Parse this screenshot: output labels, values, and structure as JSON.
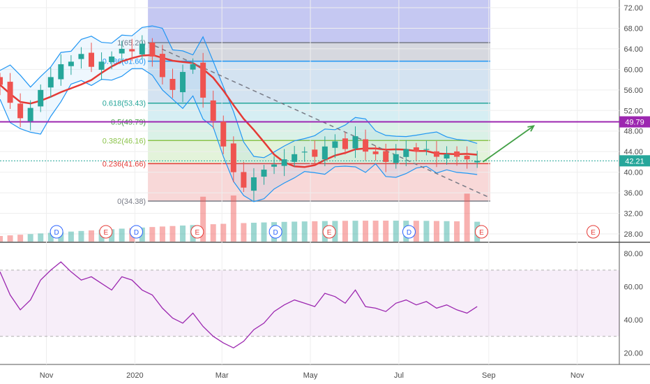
{
  "chart_data": {
    "type": "candlestick",
    "price_axis": {
      "ticks": [
        "72.00",
        "68.00",
        "64.00",
        "60.00",
        "56.00",
        "52.00",
        "48.00",
        "44.00",
        "40.00",
        "36.00",
        "32.00",
        "28.00"
      ],
      "ylim": [
        26.5,
        73.5
      ]
    },
    "rsi_axis": {
      "ticks": [
        "80.00",
        "60.00",
        "40.00",
        "20.00"
      ],
      "ylim": [
        13,
        86
      ],
      "band": [
        30,
        70
      ]
    },
    "x_axis": {
      "labels": [
        {
          "label": "Nov",
          "month": "2019-11"
        },
        {
          "label": "2020",
          "month": "2020-01"
        },
        {
          "label": "Mar",
          "month": "2020-03"
        },
        {
          "label": "May",
          "month": "2020-05"
        },
        {
          "label": "Jul",
          "month": "2020-07"
        },
        {
          "label": "Sep",
          "month": "2020-09"
        },
        {
          "label": "Nov",
          "month": "2020-11"
        }
      ]
    },
    "price_badges": [
      {
        "label": "49.79",
        "value": 49.79,
        "color": "#9c27b0"
      },
      {
        "label": "42.21",
        "value": 42.21,
        "color": "#26a69a"
      }
    ],
    "fibonacci": {
      "high": 65.2,
      "low": 34.38,
      "levels": [
        {
          "label": "1(65.20)",
          "value": 65.2,
          "color": "#787b86",
          "fill": "#d1d4dc"
        },
        {
          "label": "0.786(61.60)",
          "value": 61.6,
          "color": "#2196f3",
          "fill": "#cfe0f0"
        },
        {
          "label": "0.618(53.43)",
          "value": 53.43,
          "color": "#26a69a",
          "fill": "#d2ecf2"
        },
        {
          "label": "0.5(49.79)",
          "value": 49.79,
          "color": "#43a047",
          "fill": "#d6f0e4"
        },
        {
          "label": "0.382(46.16)",
          "value": 46.16,
          "color": "#8bc34a",
          "fill": "#e0f2d6"
        },
        {
          "label": "0.236(41.66)",
          "value": 41.66,
          "color": "#e53935",
          "fill": "#f7d4d4"
        },
        {
          "label": "0(34.38)",
          "value": 34.38,
          "color": "#787b86",
          "fill": null
        }
      ]
    },
    "events": [
      {
        "label": "D",
        "date": "2019-11-08",
        "color": "#2962ff"
      },
      {
        "label": "E",
        "date": "2019-12-12",
        "color": "#e53935"
      },
      {
        "label": "D",
        "date": "2020-01-02",
        "color": "#2962ff"
      },
      {
        "label": "E",
        "date": "2020-02-13",
        "color": "#e53935"
      },
      {
        "label": "D",
        "date": "2020-04-07",
        "color": "#2962ff"
      },
      {
        "label": "E",
        "date": "2020-05-14",
        "color": "#e53935"
      },
      {
        "label": "D",
        "date": "2020-07-08",
        "color": "#2962ff"
      },
      {
        "label": "E",
        "date": "2020-08-27",
        "color": "#e53935"
      },
      {
        "label": "E",
        "date": "2020-11-12",
        "color": "#e53935"
      }
    ],
    "ohlc_weekly": {
      "dates": [
        "2019-09-30",
        "2019-10-07",
        "2019-10-14",
        "2019-10-21",
        "2019-10-28",
        "2019-11-04",
        "2019-11-11",
        "2019-11-18",
        "2019-11-25",
        "2019-12-02",
        "2019-12-09",
        "2019-12-16",
        "2019-12-23",
        "2019-12-30",
        "2020-01-06",
        "2020-01-13",
        "2020-01-20",
        "2020-01-27",
        "2020-02-03",
        "2020-02-10",
        "2020-02-17",
        "2020-02-24",
        "2020-03-02",
        "2020-03-09",
        "2020-03-16",
        "2020-03-23",
        "2020-03-30",
        "2020-04-06",
        "2020-04-13",
        "2020-04-20",
        "2020-04-27",
        "2020-05-04",
        "2020-05-11",
        "2020-05-18",
        "2020-05-25",
        "2020-06-01",
        "2020-06-08",
        "2020-06-15",
        "2020-06-22",
        "2020-06-29",
        "2020-07-06",
        "2020-07-13",
        "2020-07-20",
        "2020-07-27",
        "2020-08-03",
        "2020-08-10",
        "2020-08-17",
        "2020-08-24"
      ],
      "close": [
        57.0,
        53.5,
        50.5,
        52.5,
        56.0,
        58.5,
        61.0,
        61.5,
        63.0,
        60.5,
        61.5,
        62.5,
        64.0,
        63.5,
        65.0,
        62.5,
        58.5,
        56.0,
        59.5,
        61.0,
        54.5,
        50.0,
        45.0,
        40.0,
        37.0,
        39.0,
        40.5,
        41.5,
        42.5,
        43.5,
        44.0,
        43.0,
        45.0,
        46.0,
        44.5,
        47.0,
        44.0,
        43.5,
        42.0,
        43.5,
        44.5,
        44.0,
        44.5,
        43.0,
        43.5,
        43.0,
        42.5,
        42.21
      ]
    },
    "ma_line": {
      "color": "#e53935"
    },
    "bollinger": {
      "color": "#2196f3"
    },
    "rsi": {
      "color": "#9c27b0",
      "values": [
        69,
        55,
        46,
        52,
        64,
        70,
        75,
        69,
        64,
        66,
        62,
        58,
        66,
        64,
        58,
        55,
        47,
        41,
        38,
        44,
        36,
        30,
        26,
        23,
        27,
        34,
        38,
        45,
        49,
        52,
        50,
        48,
        56,
        54,
        50,
        58,
        48,
        47,
        45,
        50,
        52,
        49,
        51,
        47,
        49,
        46,
        44,
        48
      ]
    }
  }
}
